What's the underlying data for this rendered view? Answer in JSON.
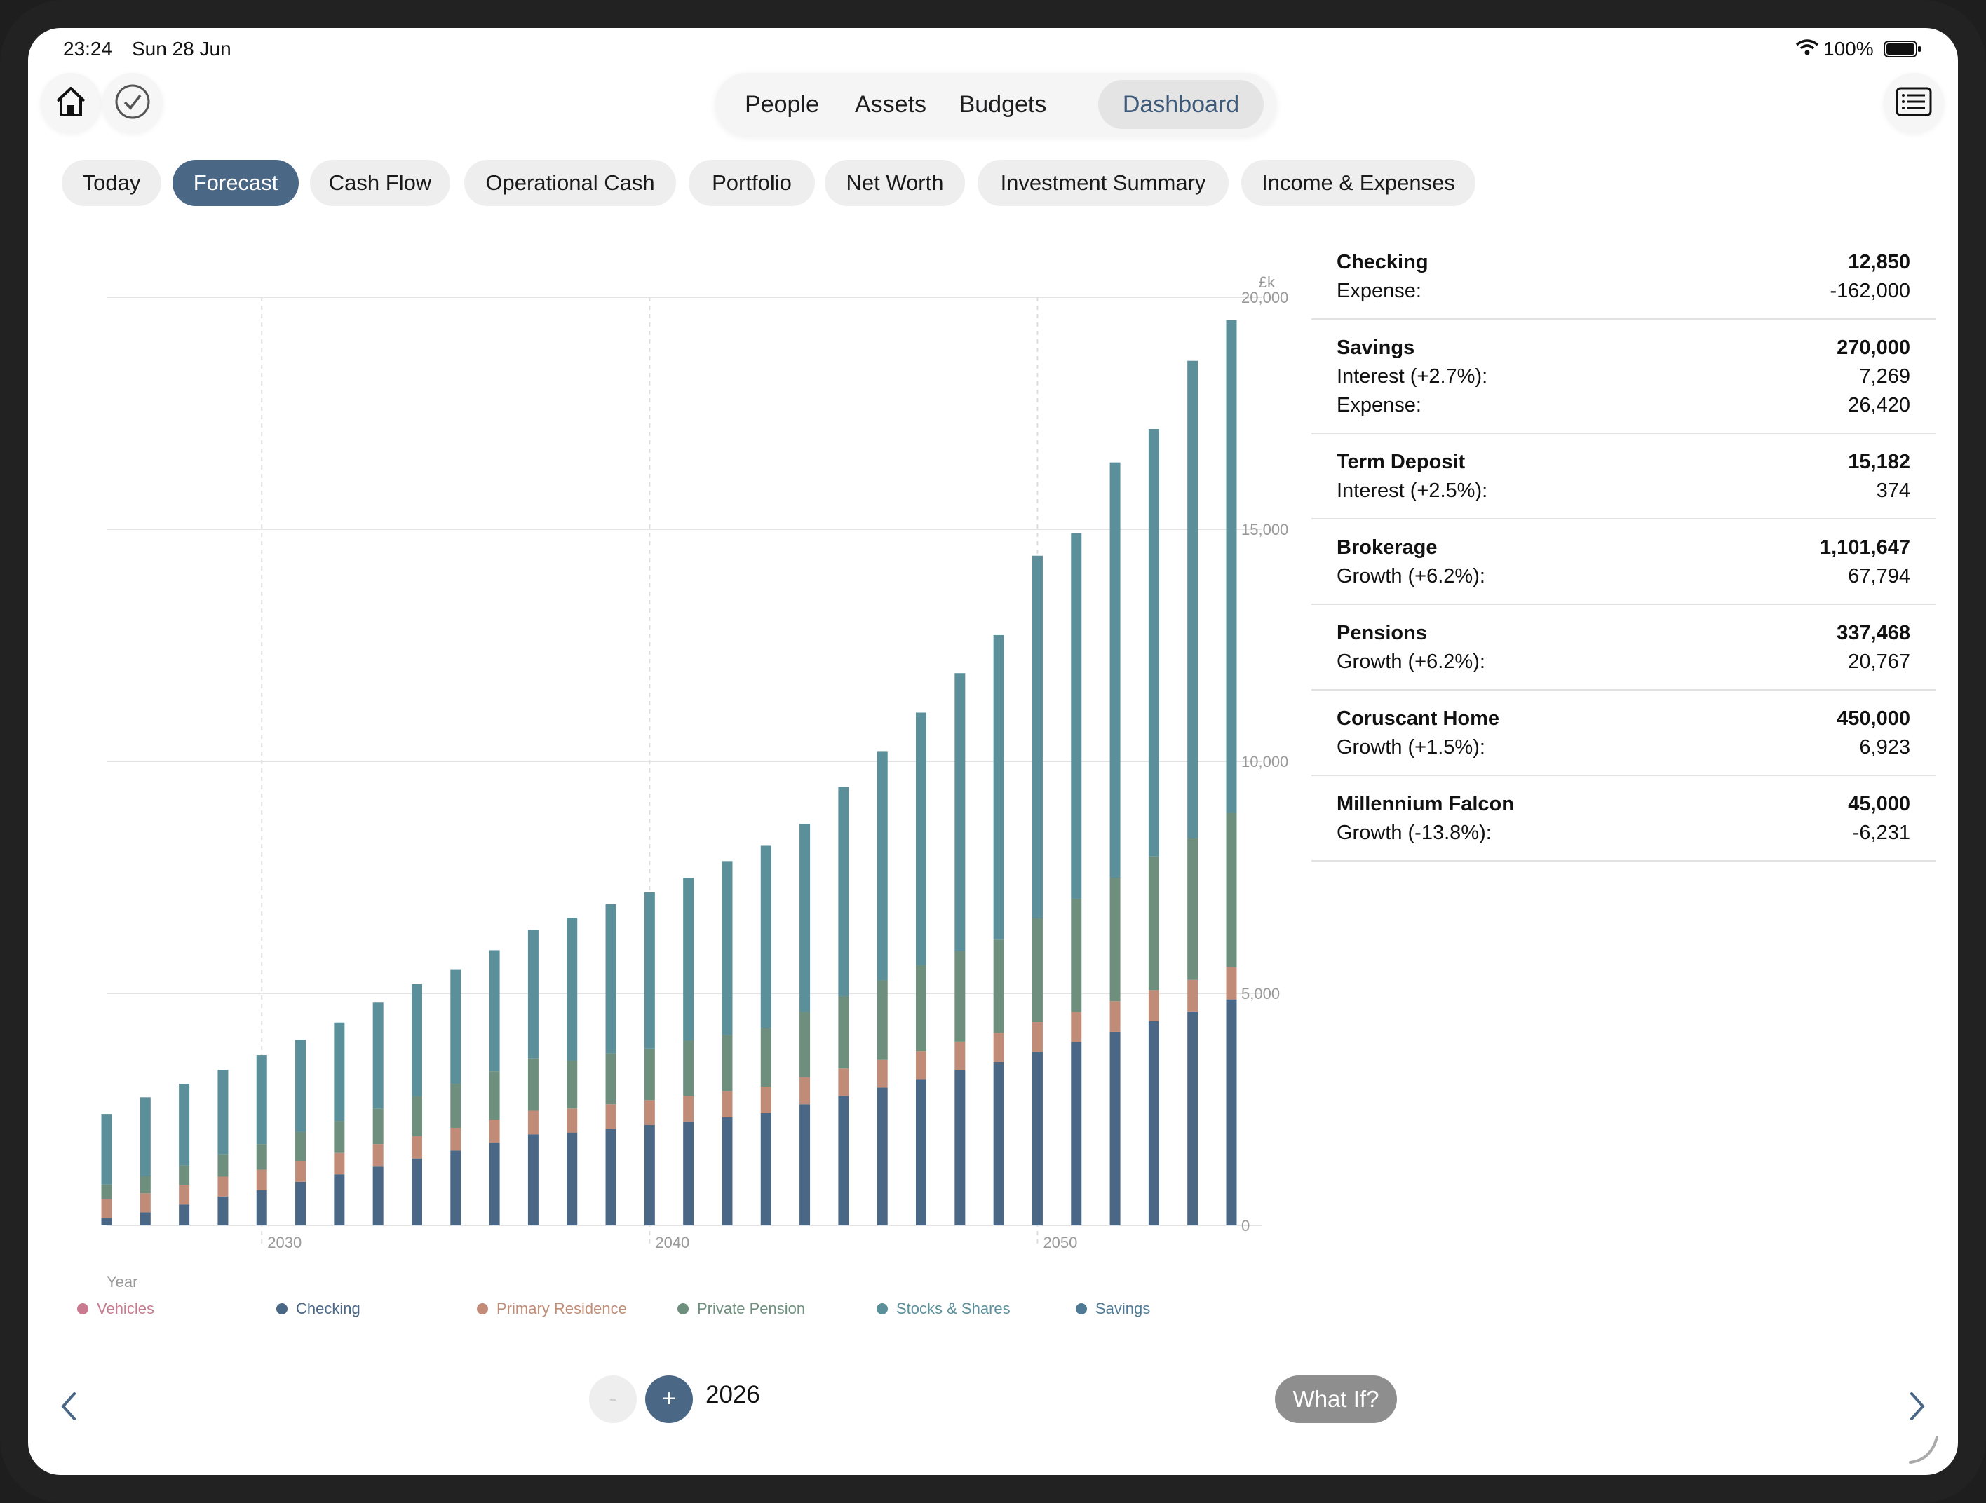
{
  "status": {
    "time": "23:24",
    "date": "Sun 28 Jun",
    "battery": "100%"
  },
  "top_tabs": [
    {
      "label": "People"
    },
    {
      "label": "Assets"
    },
    {
      "label": "Budgets"
    },
    {
      "label": "Dashboard",
      "active": true
    }
  ],
  "chips": [
    {
      "label": "Today"
    },
    {
      "label": "Forecast",
      "active": true
    },
    {
      "label": "Cash Flow"
    },
    {
      "label": "Operational Cash"
    },
    {
      "label": "Portfolio"
    },
    {
      "label": "Net Worth"
    },
    {
      "label": "Investment Summary"
    },
    {
      "label": "Income & Expenses"
    }
  ],
  "colors": {
    "accent": "#4a6786",
    "checking": "#4a6786",
    "primary_residence": "#c08c78",
    "private_pension": "#6e8f7e",
    "stocks_shares": "#5b8f99",
    "savings": "#5b8f99",
    "vehicles": "#c97a8e"
  },
  "chart_data": {
    "type": "bar",
    "stacked": true,
    "unit_label": "£k",
    "xlabel": "Year",
    "x_ticks": [
      "2030",
      "2040",
      "2050"
    ],
    "y_ticks": [
      "20,000",
      "15,000",
      "10,000",
      "5,000",
      "0"
    ],
    "ylim": [
      0,
      20000
    ],
    "grid": true,
    "categories": [
      2026,
      2027,
      2028,
      2029,
      2030,
      2031,
      2032,
      2033,
      2034,
      2035,
      2036,
      2037,
      2038,
      2039,
      2040,
      2041,
      2042,
      2043,
      2044,
      2045,
      2046,
      2047,
      2048,
      2049,
      2050,
      2051,
      2052,
      2053,
      2054,
      2055
    ],
    "series": [
      {
        "name": "Checking",
        "color": "#4a6786",
        "values": [
          160,
          280,
          450,
          620,
          760,
          940,
          1100,
          1280,
          1440,
          1610,
          1780,
          1960,
          2000,
          2080,
          2160,
          2240,
          2330,
          2420,
          2610,
          2790,
          2970,
          3150,
          3340,
          3520,
          3740,
          3950,
          4170,
          4400,
          4610,
          4870
        ]
      },
      {
        "name": "Primary Residence",
        "color": "#c08c78",
        "values": [
          400,
          410,
          420,
          430,
          440,
          450,
          460,
          470,
          480,
          490,
          500,
          510,
          520,
          530,
          540,
          550,
          560,
          570,
          580,
          590,
          600,
          610,
          620,
          630,
          640,
          650,
          660,
          670,
          680,
          690
        ]
      },
      {
        "name": "Private Pension",
        "color": "#6e8f7e",
        "values": [
          320,
          370,
          420,
          480,
          550,
          620,
          690,
          770,
          860,
          950,
          1040,
          1130,
          1030,
          1100,
          1110,
          1190,
          1210,
          1260,
          1410,
          1560,
          1710,
          1850,
          1950,
          2010,
          2240,
          2440,
          2660,
          2880,
          3050,
          3330
        ]
      },
      {
        "name": "Stocks & Shares",
        "color": "#5b8f99",
        "values": [
          1520,
          1700,
          1760,
          1820,
          1920,
          1990,
          2120,
          2280,
          2420,
          2470,
          2610,
          2770,
          3080,
          3210,
          3370,
          3510,
          3750,
          3930,
          4050,
          4510,
          4940,
          5440,
          5990,
          6560,
          7810,
          7880,
          8950,
          9210,
          10290,
          10620
        ]
      }
    ],
    "legend": [
      "Vehicles",
      "Checking",
      "Primary Residence",
      "Private Pension",
      "Stocks & Shares",
      "Savings"
    ]
  },
  "accounts": [
    {
      "name": "Checking",
      "value": "12,850",
      "details": [
        {
          "label": "Expense:",
          "value": "-162,000"
        }
      ]
    },
    {
      "name": "Savings",
      "value": "270,000",
      "details": [
        {
          "label": "Interest (+2.7%):",
          "value": "7,269"
        },
        {
          "label": "Expense:",
          "value": "26,420"
        }
      ]
    },
    {
      "name": "Term Deposit",
      "value": "15,182",
      "details": [
        {
          "label": "Interest (+2.5%):",
          "value": "374"
        }
      ]
    },
    {
      "name": "Brokerage",
      "value": "1,101,647",
      "details": [
        {
          "label": "Growth (+6.2%):",
          "value": "67,794"
        }
      ]
    },
    {
      "name": "Pensions",
      "value": "337,468",
      "details": [
        {
          "label": "Growth (+6.2%):",
          "value": "20,767"
        }
      ]
    },
    {
      "name": "Coruscant Home",
      "value": "450,000",
      "details": [
        {
          "label": "Growth (+1.5%):",
          "value": "6,923"
        }
      ]
    },
    {
      "name": "Millennium Falcon",
      "value": "45,000",
      "details": [
        {
          "label": "Growth (-13.8%):",
          "value": "-6,231"
        }
      ]
    }
  ],
  "year_stepper": {
    "minus_label": "-",
    "plus_label": "+",
    "year": "2026"
  },
  "what_if_label": "What If?"
}
